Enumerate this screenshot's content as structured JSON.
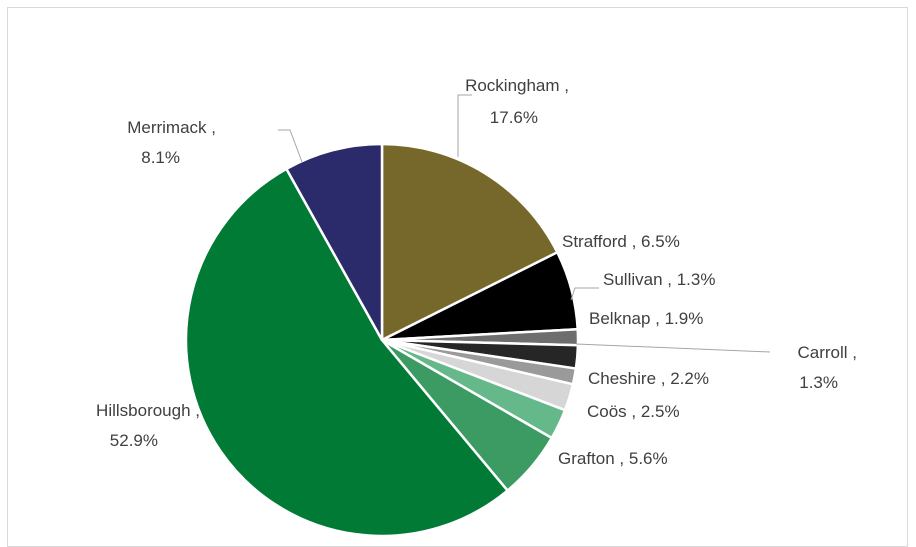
{
  "chart_data": {
    "type": "pie",
    "title": "",
    "slices": [
      {
        "name": "Rockingham",
        "value": 17.6,
        "pct_label": "17.6%",
        "color": "#76672a"
      },
      {
        "name": "Strafford",
        "value": 6.5,
        "pct_label": "6.5%",
        "color": "#000000"
      },
      {
        "name": "Sullivan",
        "value": 1.3,
        "pct_label": "1.3%",
        "color": "#6e6e6e"
      },
      {
        "name": "Belknap",
        "value": 1.9,
        "pct_label": "1.9%",
        "color": "#262626"
      },
      {
        "name": "Carroll",
        "value": 1.3,
        "pct_label": "1.3%",
        "color": "#9a9a9a"
      },
      {
        "name": "Cheshire",
        "value": 2.2,
        "pct_label": "2.2%",
        "color": "#d6d6d6"
      },
      {
        "name": "Coös",
        "value": 2.5,
        "pct_label": "2.5%",
        "color": "#65b88a"
      },
      {
        "name": "Grafton",
        "value": 5.6,
        "pct_label": "5.6%",
        "color": "#3c9b63"
      },
      {
        "name": "Hillsborough",
        "value": 52.9,
        "pct_label": "52.9%",
        "color": "#017a35"
      },
      {
        "name": "Merrimack",
        "value": 8.1,
        "pct_label": "8.1%",
        "color": "#2b2b6c"
      }
    ],
    "legend": "none",
    "data_labels": "outside with leader lines"
  }
}
